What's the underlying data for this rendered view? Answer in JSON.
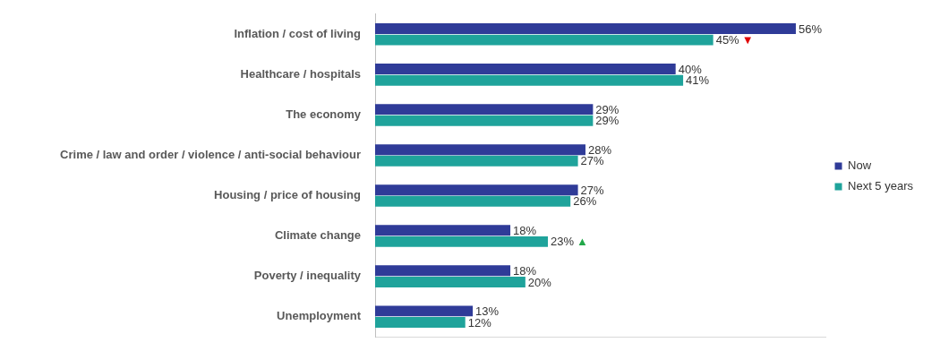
{
  "chart_data": {
    "type": "bar",
    "orientation": "horizontal",
    "categories": [
      "Inflation / cost of living",
      "Healthcare / hospitals",
      "The economy",
      "Crime / law and order / violence / anti-social behaviour",
      "Housing / price of housing",
      "Climate change",
      "Poverty / inequality",
      "Unemployment"
    ],
    "series": [
      {
        "name": "Now",
        "color": "#2f3b98",
        "values": [
          56,
          40,
          29,
          28,
          27,
          18,
          18,
          13
        ],
        "value_labels": [
          "56%",
          "40%",
          "29%",
          "28%",
          "27%",
          "18%",
          "18%",
          "13%"
        ]
      },
      {
        "name": "Next 5 years",
        "color": "#1fa39b",
        "values": [
          45,
          41,
          29,
          27,
          26,
          23,
          20,
          12
        ],
        "value_labels": [
          "45%",
          "41%",
          "29%",
          "27%",
          "26%",
          "23%",
          "20%",
          "12%"
        ]
      }
    ],
    "xlim": [
      0,
      60
    ],
    "grid": false,
    "legend": "right",
    "data_labels": true,
    "tick_labels": "y",
    "annotations": [
      {
        "category": "Inflation / cost of living",
        "series": "Next 5 years",
        "text": "▼",
        "color": "#e00000"
      },
      {
        "category": "Climate change",
        "series": "Next 5 years",
        "text": "▲",
        "color": "#22a84a"
      }
    ]
  }
}
